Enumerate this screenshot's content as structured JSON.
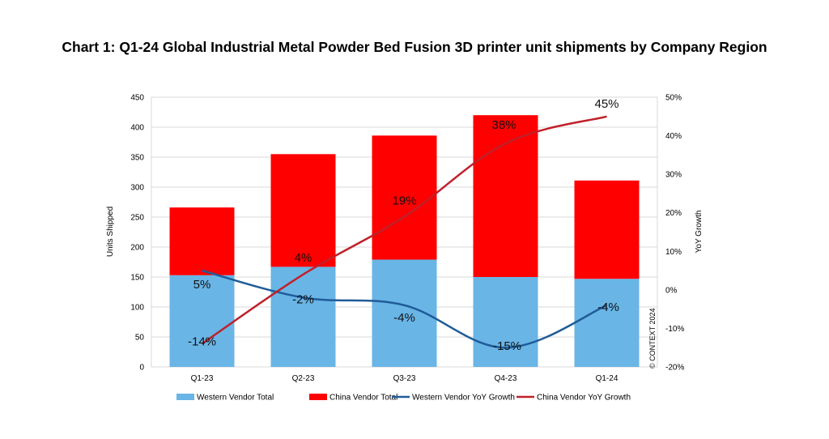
{
  "chart_data": {
    "type": "bar",
    "title": "Chart 1: Q1-24 Global Industrial Metal Powder Bed Fusion 3D printer unit shipments by Company Region",
    "categories": [
      "Q1-23",
      "Q2-23",
      "Q3-23",
      "Q4-23",
      "Q1-24"
    ],
    "ylabel": "Units Shipped",
    "ylim": [
      0,
      450
    ],
    "yticks": [
      "0",
      "50",
      "100",
      "150",
      "200",
      "250",
      "300",
      "350",
      "400",
      "450"
    ],
    "y2label": "YoY Growth",
    "y2lim": [
      -20,
      50
    ],
    "y2ticks": [
      "-20%",
      "-10%",
      "0%",
      "10%",
      "20%",
      "30%",
      "40%",
      "50%"
    ],
    "stacked_series": [
      {
        "name": "Western Vendor Total",
        "color": "#69B5E6",
        "values": [
          153,
          167,
          179,
          150,
          147
        ]
      },
      {
        "name": "China Vendor Total",
        "color": "#FF0000",
        "values": [
          113,
          188,
          207,
          270,
          164
        ]
      }
    ],
    "line_series": [
      {
        "name": "Western Vendor YoY Growth",
        "color": "#1F5C99",
        "values": [
          5,
          -2,
          -4,
          -15,
          -4
        ],
        "labels": [
          "5%",
          "-2%",
          "-4%",
          "-15%",
          "-4%"
        ]
      },
      {
        "name": "China Vendor YoY Growth",
        "color": "#C0202A",
        "values": [
          -14,
          4,
          19,
          38,
          45
        ],
        "labels": [
          "-14%",
          "4%",
          "19%",
          "38%",
          "45%"
        ]
      }
    ],
    "watermark": "© CONTEXT 2024",
    "legend_position": "bottom"
  }
}
